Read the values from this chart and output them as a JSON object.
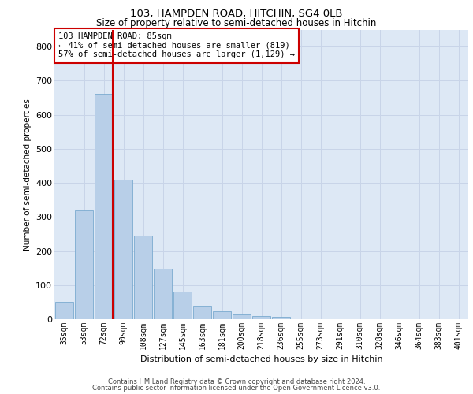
{
  "title1": "103, HAMPDEN ROAD, HITCHIN, SG4 0LB",
  "title2": "Size of property relative to semi-detached houses in Hitchin",
  "xlabel": "Distribution of semi-detached houses by size in Hitchin",
  "ylabel": "Number of semi-detached properties",
  "categories": [
    "35sqm",
    "53sqm",
    "72sqm",
    "90sqm",
    "108sqm",
    "127sqm",
    "145sqm",
    "163sqm",
    "181sqm",
    "200sqm",
    "218sqm",
    "236sqm",
    "255sqm",
    "273sqm",
    "291sqm",
    "310sqm",
    "328sqm",
    "346sqm",
    "364sqm",
    "383sqm",
    "401sqm"
  ],
  "values": [
    52,
    320,
    662,
    410,
    245,
    148,
    80,
    40,
    23,
    13,
    10,
    8,
    0,
    0,
    0,
    0,
    0,
    0,
    0,
    0,
    0
  ],
  "bar_color": "#b8cfe8",
  "bar_edge_color": "#7aaad0",
  "vline_color": "#cc0000",
  "vline_x_index": 2,
  "annotation_text": "103 HAMPDEN ROAD: 85sqm\n← 41% of semi-detached houses are smaller (819)\n57% of semi-detached houses are larger (1,129) →",
  "box_color": "#cc0000",
  "ylim": [
    0,
    850
  ],
  "yticks": [
    0,
    100,
    200,
    300,
    400,
    500,
    600,
    700,
    800
  ],
  "grid_color": "#c8d4e8",
  "bg_color": "#dde8f5",
  "footer1": "Contains HM Land Registry data © Crown copyright and database right 2024.",
  "footer2": "Contains public sector information licensed under the Open Government Licence v3.0."
}
